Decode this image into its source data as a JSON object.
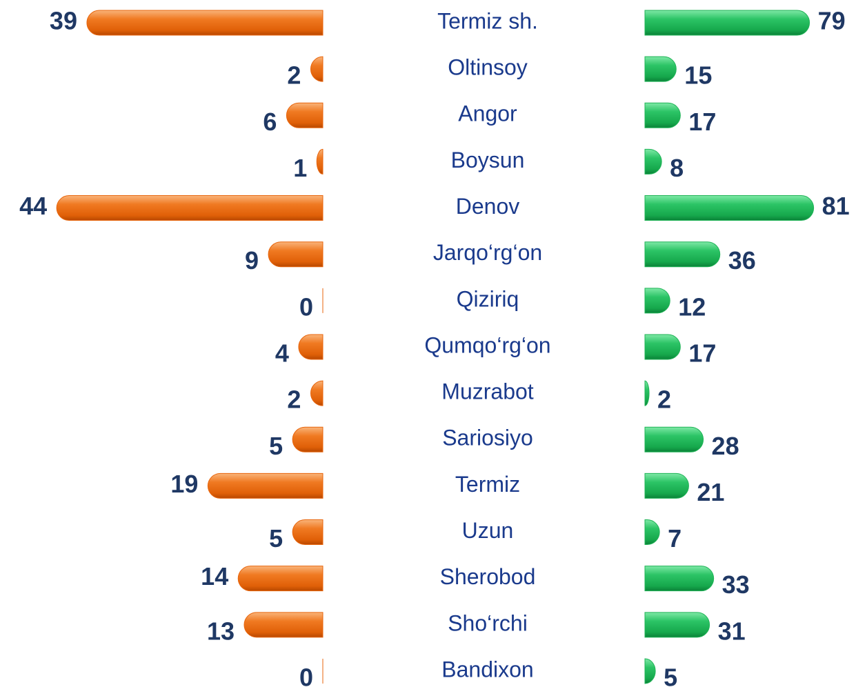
{
  "chart_data": {
    "type": "butterfly-bar",
    "categories": [
      "Termiz sh.",
      "Oltinsoy",
      "Angor",
      "Boysun",
      "Denov",
      "Jarqo‘rg‘on",
      "Qiziriq",
      "Qumqo‘rg‘on",
      "Muzrabot",
      "Sariosiyo",
      "Termiz",
      "Uzun",
      "Sherobod",
      "Sho‘rchi",
      "Bandixon"
    ],
    "series": [
      {
        "color": "#e8650c",
        "values": [
          39,
          2,
          6,
          1,
          44,
          9,
          0,
          4,
          2,
          5,
          19,
          5,
          14,
          13,
          0
        ]
      },
      {
        "color": "#1fb356",
        "values": [
          79,
          15,
          17,
          8,
          81,
          36,
          12,
          17,
          2,
          28,
          21,
          7,
          33,
          31,
          5
        ]
      }
    ]
  }
}
